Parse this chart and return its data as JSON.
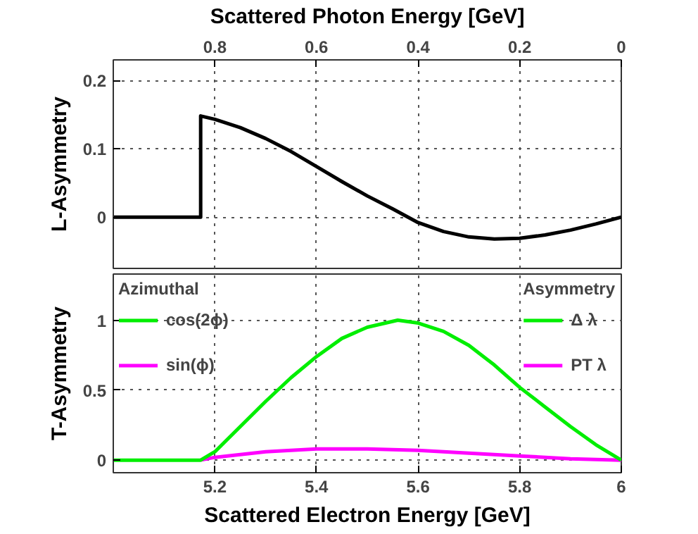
{
  "chart_data": [
    {
      "type": "line",
      "x2label": "Scattered Photon Energy [GeV]",
      "ylabel": "L-Asymmetry",
      "xlim": [
        5.0,
        6.0
      ],
      "x2lim": [
        1.0,
        0
      ],
      "x2ticks": [
        0.8,
        0.6,
        0.4,
        0.2,
        0
      ],
      "ylim": [
        -0.075,
        0.23
      ],
      "yticks": [
        0,
        0.1,
        0.2
      ],
      "grid": true,
      "tick_labels": "y",
      "series": [
        {
          "color": "#000000",
          "x": [
            5.0,
            5.172,
            5.172,
            5.2,
            5.25,
            5.3,
            5.35,
            5.4,
            5.45,
            5.5,
            5.55,
            5.6,
            5.65,
            5.7,
            5.75,
            5.8,
            5.85,
            5.9,
            5.95,
            6.0
          ],
          "values": [
            0,
            0,
            0.148,
            0.143,
            0.131,
            0.115,
            0.096,
            0.074,
            0.052,
            0.031,
            0.012,
            -0.008,
            -0.021,
            -0.029,
            -0.032,
            -0.031,
            -0.026,
            -0.019,
            -0.01,
            0
          ]
        }
      ]
    },
    {
      "type": "line",
      "xlabel": "Scattered Electron Energy [GeV]",
      "ylabel": "T-Asymmetry",
      "xlim": [
        5.0,
        6.0
      ],
      "xticks": [
        5.2,
        5.4,
        5.6,
        5.8,
        6
      ],
      "ylim": [
        -0.09,
        1.33
      ],
      "yticks": [
        0,
        0.5,
        1
      ],
      "grid": true,
      "legend": "top left",
      "legend_title": "Azimuthal",
      "annotations": [
        "Asymmetry",
        "Δ λ",
        "PT λ"
      ],
      "series": [
        {
          "name": "cos(2ϕ)",
          "color": "#00ee00",
          "x": [
            5.0,
            5.172,
            5.2,
            5.25,
            5.3,
            5.35,
            5.4,
            5.45,
            5.5,
            5.56,
            5.6,
            5.65,
            5.7,
            5.75,
            5.8,
            5.85,
            5.9,
            5.95,
            6.0
          ],
          "values": [
            0,
            0,
            0.06,
            0.24,
            0.42,
            0.59,
            0.74,
            0.87,
            0.95,
            1.0,
            0.98,
            0.92,
            0.82,
            0.68,
            0.52,
            0.38,
            0.24,
            0.11,
            0
          ]
        },
        {
          "name": "sin(ϕ)",
          "color": "#ff00ff",
          "x": [
            5.172,
            5.2,
            5.3,
            5.4,
            5.5,
            5.6,
            5.7,
            5.8,
            5.9,
            6.0
          ],
          "values": [
            0,
            0.02,
            0.06,
            0.08,
            0.08,
            0.07,
            0.05,
            0.03,
            0.01,
            0
          ]
        }
      ]
    }
  ]
}
